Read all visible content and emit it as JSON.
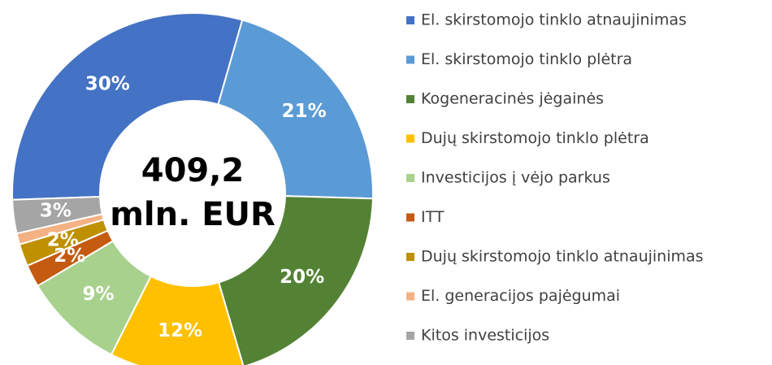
{
  "chart_data": {
    "type": "donut",
    "categories": [
      "El. skirstomojo tinklo atnaujinimas",
      "El. skirstomojo tinklo plėtra",
      "Kogeneracinės jėgainės",
      "Dujų skirstomojo tinklo plėtra",
      "Investicijos į vėjo parkus",
      "ITT",
      "Dujų skirstomojo tinklo atnaujinimas",
      "El. generacijos pajėgumai",
      "Kitos investicijos"
    ],
    "values": [
      30,
      21,
      20,
      12,
      9,
      2,
      2,
      1,
      3
    ],
    "value_labels": [
      "30%",
      "21%",
      "20%",
      "12%",
      "9%",
      "2%",
      "2%",
      null,
      "3%"
    ],
    "colors": [
      "#4472c4",
      "#5b9bd5",
      "#548235",
      "#ffc000",
      "#a9d18e",
      "#c55a11",
      "#bf9000",
      "#f4b183",
      "#a5a5a5"
    ],
    "center_text": [
      "409,2",
      "mln. EUR"
    ]
  }
}
